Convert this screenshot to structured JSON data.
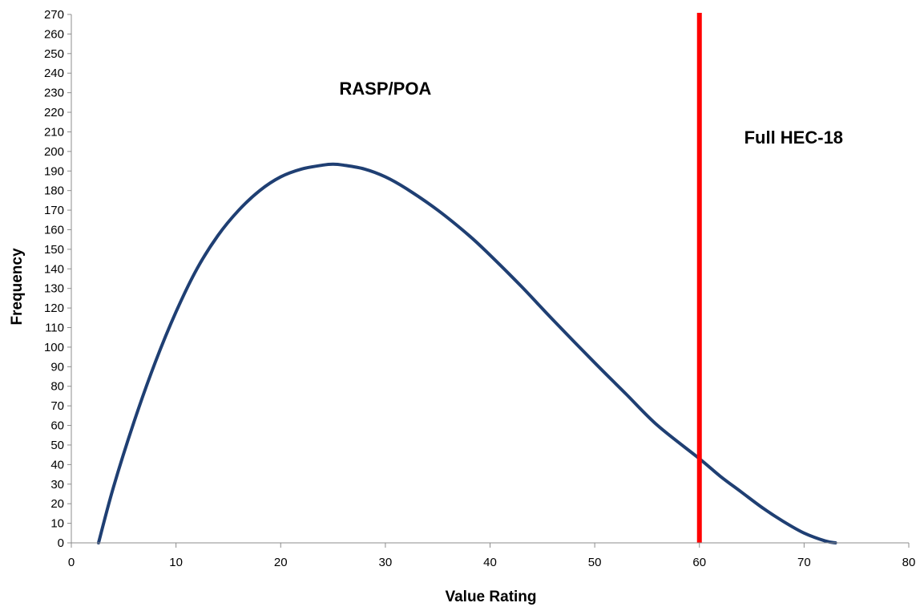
{
  "chart_data": {
    "type": "line",
    "xlabel": "Value Rating",
    "ylabel": "Frequency",
    "xlim": [
      0,
      80
    ],
    "ylim": [
      0,
      270
    ],
    "x_ticks": [
      0,
      10,
      20,
      30,
      40,
      50,
      60,
      70,
      80
    ],
    "y_ticks": [
      0,
      10,
      20,
      30,
      40,
      50,
      60,
      70,
      80,
      90,
      100,
      110,
      120,
      130,
      140,
      150,
      160,
      170,
      180,
      190,
      200,
      210,
      220,
      230,
      240,
      250,
      260,
      270
    ],
    "grid": false,
    "series": [
      {
        "color": "#1f3f73",
        "x": [
          2.6,
          4,
          6,
          8,
          10,
          12,
          14,
          16,
          18,
          20,
          22,
          24,
          25,
          26,
          28,
          30,
          32,
          35,
          38,
          40,
          43,
          46,
          50,
          53,
          56,
          60,
          62,
          64,
          66,
          68,
          70,
          72,
          73
        ],
        "y": [
          0,
          28,
          62,
          92,
          118,
          140,
          157,
          170,
          180,
          187,
          191,
          193,
          193.5,
          193,
          191,
          187,
          181,
          170,
          157,
          147,
          131,
          114,
          92,
          76,
          60,
          43,
          34,
          26,
          18,
          11,
          5,
          1,
          0
        ]
      }
    ],
    "vertical_line": {
      "x": 60,
      "color": "#ff0000"
    },
    "annotations": [
      {
        "text": "RASP/POA",
        "x": 30,
        "y": 229
      },
      {
        "text": "Full HEC-18",
        "x": 69,
        "y": 204
      }
    ]
  }
}
